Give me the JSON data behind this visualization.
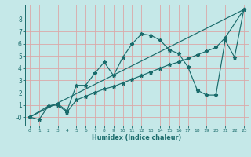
{
  "title": "",
  "xlabel": "Humidex (Indice chaleur)",
  "bg_color": "#c5e8e8",
  "line_color": "#1a6b6b",
  "grid_color": "#dba8a8",
  "xlim": [
    -0.5,
    23.5
  ],
  "ylim": [
    -0.7,
    9.2
  ],
  "yticks": [
    0,
    1,
    2,
    3,
    4,
    5,
    6,
    7,
    8
  ],
  "ytick_labels": [
    "-0",
    "1",
    "2",
    "3",
    "4",
    "5",
    "6",
    "7",
    "8"
  ],
  "xticks": [
    0,
    1,
    2,
    3,
    4,
    5,
    6,
    7,
    8,
    9,
    10,
    11,
    12,
    13,
    14,
    15,
    16,
    17,
    18,
    19,
    20,
    21,
    22,
    23
  ],
  "line1_x": [
    0,
    1,
    2,
    3,
    4,
    5,
    6,
    7,
    8,
    9,
    10,
    11,
    12,
    13,
    14,
    15,
    16,
    17,
    18,
    19,
    20,
    21,
    22,
    23
  ],
  "line1_y": [
    0,
    -0.2,
    0.9,
    1.1,
    0.5,
    2.6,
    2.6,
    3.6,
    4.5,
    3.4,
    4.9,
    6.0,
    6.8,
    6.7,
    6.3,
    5.5,
    5.2,
    4.1,
    2.2,
    1.8,
    1.8,
    6.3,
    4.9,
    8.8
  ],
  "line2_x": [
    0,
    2,
    3,
    4,
    5,
    6,
    7,
    8,
    9,
    10,
    11,
    12,
    13,
    14,
    15,
    16,
    17,
    18,
    19,
    20,
    21,
    23
  ],
  "line2_y": [
    0,
    0.9,
    1.0,
    0.4,
    1.4,
    1.7,
    2.0,
    2.3,
    2.5,
    2.8,
    3.1,
    3.4,
    3.7,
    4.0,
    4.3,
    4.5,
    4.8,
    5.1,
    5.4,
    5.7,
    6.5,
    8.8
  ],
  "line3_x": [
    0,
    23
  ],
  "line3_y": [
    0,
    8.8
  ],
  "figsize": [
    3.2,
    2.0
  ],
  "dpi": 100,
  "marker": "*",
  "markersize": 3.5,
  "linewidth": 0.85
}
